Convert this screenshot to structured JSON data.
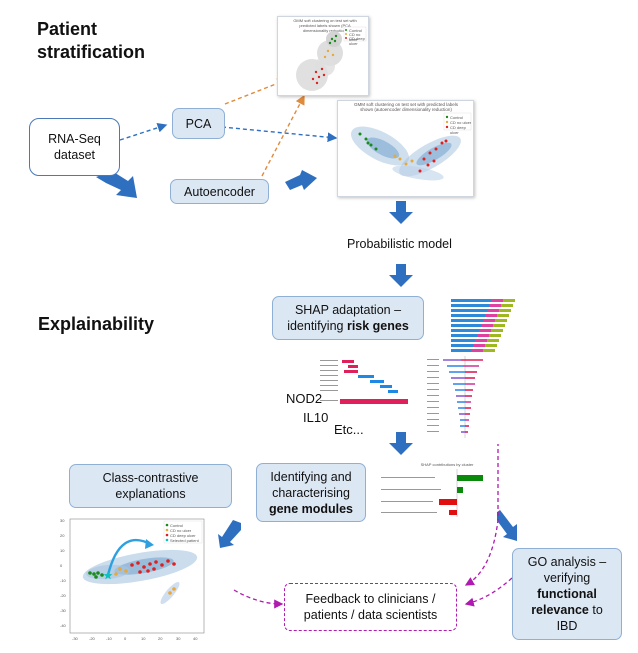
{
  "headings": {
    "stratification_line1": "Patient",
    "stratification_line2": "stratification",
    "explainability": "Explainability"
  },
  "nodes": {
    "rnaseq_line1": "RNA-Seq",
    "rnaseq_line2": "dataset",
    "pca": "PCA",
    "autoencoder": "Autoencoder",
    "probabilistic_model": "Probabilistic model",
    "shap_line1": "SHAP adaptation –",
    "shap_line2_prefix": "identifying ",
    "shap_line2_bold": "risk genes",
    "class_contrastive_line1": "Class-contrastive",
    "class_contrastive_line2": "explanations",
    "modules_line1": "Identifying and",
    "modules_line2": "characterising",
    "modules_line3_bold": "gene modules",
    "go_line1": "GO analysis –",
    "go_line2": "verifying",
    "go_line3_bold": "functional",
    "go_line4_bold": "relevance",
    "go_line4_suffix": " to",
    "go_line5": "IBD",
    "feedback_line1": "Feedback to clinicians /",
    "feedback_line2": "patients / data scientists"
  },
  "gene_labels": [
    "NOD2",
    "IL10",
    "Etc..."
  ],
  "thumbnails": {
    "gmm_pca_title": "GMM soft clustering on test set with predicted labels shown (PCA dimensionality reduction)",
    "gmm_ae_title": "GMM soft clustering on test set with predicted labels shown (autoencoder dimensionality reduction)",
    "legend": [
      "Control",
      "CD no ulcer",
      "CD deep ulcer"
    ],
    "legend_contrastive": [
      "Control",
      "CD no ulcer",
      "CD deep ulcer",
      "Selected patient"
    ],
    "shap_modules_title": "SHAP contributions by cluster",
    "contrastive_yticks": [
      "30",
      "20",
      "10",
      "0",
      "-10",
      "-20",
      "-30",
      "-40"
    ],
    "contrastive_xticks": [
      "-30",
      "-20",
      "-10",
      "0",
      "10",
      "20",
      "30",
      "40"
    ]
  },
  "colors": {
    "box_fill": "#dce7f4",
    "arrow_blue": "#2e6fc0",
    "dash_orange": "#e08a3c",
    "dash_magenta": "#b01ab0",
    "control": "#1a8a1a",
    "cd_no_ulcer": "#e8a83a",
    "cd_deep_ulcer": "#e02020",
    "selected": "#10c0c0"
  }
}
